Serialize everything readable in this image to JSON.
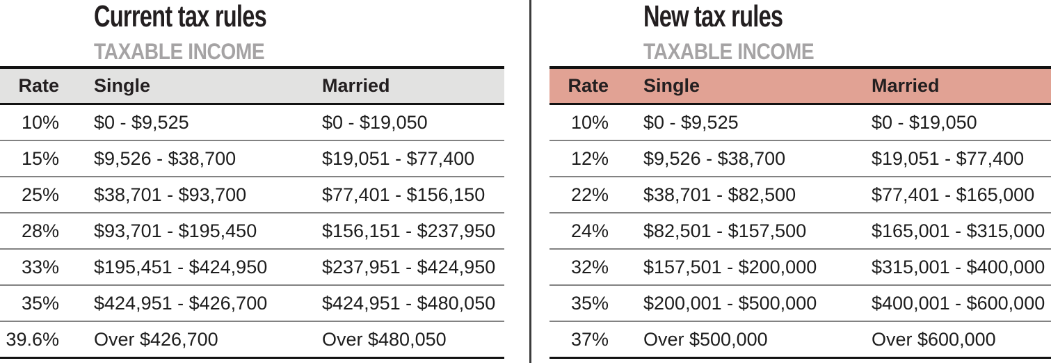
{
  "chart_data": [
    {
      "type": "table",
      "title": "Current tax rules",
      "subtitle": "TAXABLE INCOME",
      "columns": [
        "Rate",
        "Single",
        "Married"
      ],
      "header_bg": "#e2e2e1",
      "rows": [
        [
          "10%",
          "$0 - $9,525",
          "$0 - $19,050"
        ],
        [
          "15%",
          "$9,526 - $38,700",
          "$19,051 - $77,400"
        ],
        [
          "25%",
          "$38,701 - $93,700",
          "$77,401 - $156,150"
        ],
        [
          "28%",
          "$93,701 - $195,450",
          "$156,151 - $237,950"
        ],
        [
          "33%",
          "$195,451 - $424,950",
          "$237,951 - $424,950"
        ],
        [
          "35%",
          "$424,951 - $426,700",
          "$424,951 - $480,050"
        ],
        [
          "39.6%",
          "Over $426,700",
          "Over $480,050"
        ]
      ]
    },
    {
      "type": "table",
      "title": "New tax rules",
      "subtitle": "TAXABLE INCOME",
      "columns": [
        "Rate",
        "Single",
        "Married"
      ],
      "header_bg": "#e1a294",
      "rows": [
        [
          "10%",
          "$0 - $9,525",
          "$0 - $19,050"
        ],
        [
          "12%",
          "$9,526 - $38,700",
          "$19,051 - $77,400"
        ],
        [
          "22%",
          "$38,701 - $82,500",
          "$77,401 - $165,000"
        ],
        [
          "24%",
          "$82,501 - $157,500",
          "$165,001 - $315,000"
        ],
        [
          "32%",
          "$157,501 - $200,000",
          "$315,001 - $400,000"
        ],
        [
          "35%",
          "$200,001 - $500,000",
          "$400,001 - $600,000"
        ],
        [
          "37%",
          "Over $500,000",
          "Over $600,000"
        ]
      ]
    }
  ],
  "colors": {
    "title_text": "#231f20",
    "subtitle_text": "#a5a3a4",
    "body_text": "#1d1d1d",
    "current_header_bg": "#e2e2e1",
    "new_header_bg": "#e1a294",
    "heavy_border": "#121212",
    "row_separator": "#828282",
    "panel_divider": "#3c3c3c"
  }
}
